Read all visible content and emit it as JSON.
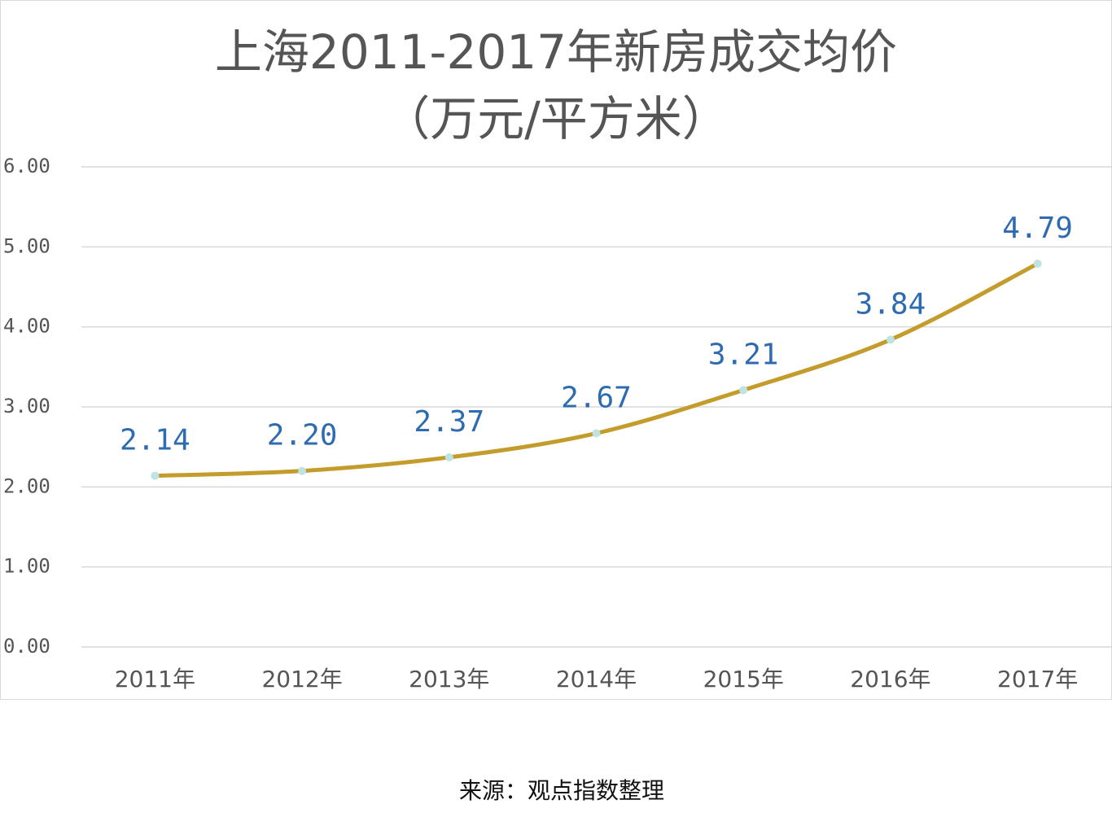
{
  "chart_data": {
    "type": "line",
    "title": [
      "上海2011-2017年新房成交均价",
      "（万元/平方米）"
    ],
    "categories": [
      "2011年",
      "2012年",
      "2013年",
      "2014年",
      "2015年",
      "2016年",
      "2017年"
    ],
    "series": [
      {
        "color": "#c39c2c",
        "marker_color": "#bfe3e3",
        "values": [
          2.14,
          2.2,
          2.37,
          2.67,
          3.21,
          3.84,
          4.79
        ],
        "value_labels": [
          "2.14",
          "2.20",
          "2.37",
          "2.67",
          "3.21",
          "3.84",
          "4.79"
        ]
      }
    ],
    "ylim": [
      0,
      6
    ],
    "yticks": [
      {
        "value": 0,
        "label": "0.00"
      },
      {
        "value": 1,
        "label": "1.00"
      },
      {
        "value": 2,
        "label": "2.00"
      },
      {
        "value": 3,
        "label": "3.00"
      },
      {
        "value": 4,
        "label": "4.00"
      },
      {
        "value": 5,
        "label": "5.00"
      },
      {
        "value": 6,
        "label": "6.00"
      }
    ],
    "grid": true,
    "source": "来源：观点指数整理"
  }
}
